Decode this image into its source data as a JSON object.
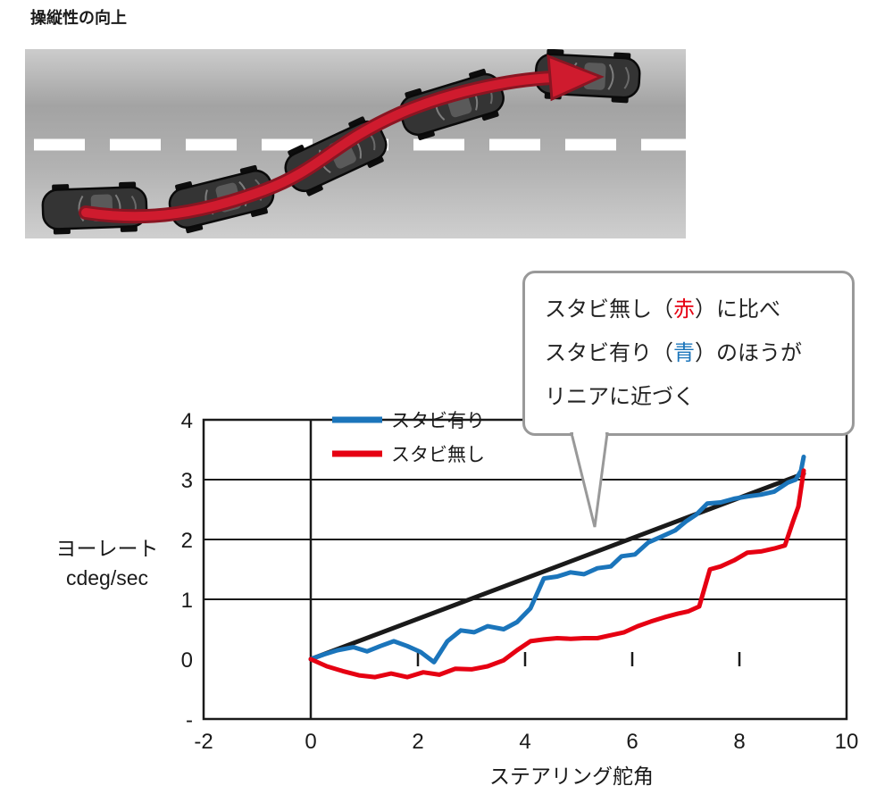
{
  "page": {
    "title": "操縦性の向上"
  },
  "callout": {
    "border_color": "#999999",
    "lines": [
      [
        {
          "text": "スタビ無し（"
        },
        {
          "text": "赤",
          "color": "#e60012"
        },
        {
          "text": "）に比べ"
        }
      ],
      [
        {
          "text": "スタビ有り（"
        },
        {
          "text": "青",
          "color": "#1b75bb"
        },
        {
          "text": "）のほうが"
        }
      ],
      [
        {
          "text": "リニアに近づく"
        }
      ]
    ]
  },
  "chart_data": {
    "type": "line",
    "title": "",
    "xlabel": "ステアリング舵角",
    "ylabel_lines": [
      "ヨーレート",
      "cdeg/sec"
    ],
    "xlim": [
      -2,
      10
    ],
    "ylim": [
      -1,
      4
    ],
    "x_ticks": [
      -2,
      0,
      2,
      4,
      6,
      8,
      10
    ],
    "x_tick_labels": [
      "-2",
      "0",
      "2",
      "4",
      "6",
      "8",
      "10"
    ],
    "y_ticks": [
      4,
      3,
      2,
      1,
      0,
      -1
    ],
    "y_tick_labels": [
      "4",
      "3",
      "2",
      "1",
      "0",
      "-"
    ],
    "gridlines_y": [
      1,
      2,
      3
    ],
    "axis_x_position": 0,
    "zero_line_ticks_x": [
      2,
      4,
      6,
      8
    ],
    "legend_position": "top-inside",
    "series": [
      {
        "name": "",
        "color": "#1a1a1a",
        "width": 5,
        "show_in_legend": false,
        "points": [
          [
            0,
            0
          ],
          [
            9.2,
            3.1
          ]
        ]
      },
      {
        "name": "スタビ有り",
        "color": "#1b75bb",
        "width": 5,
        "show_in_legend": true,
        "points": [
          [
            0,
            0
          ],
          [
            0.25,
            0.08
          ],
          [
            0.5,
            0.15
          ],
          [
            0.8,
            0.2
          ],
          [
            1.05,
            0.13
          ],
          [
            1.3,
            0.22
          ],
          [
            1.55,
            0.3
          ],
          [
            1.8,
            0.22
          ],
          [
            2.05,
            0.12
          ],
          [
            2.3,
            -0.05
          ],
          [
            2.55,
            0.3
          ],
          [
            2.8,
            0.48
          ],
          [
            3.05,
            0.45
          ],
          [
            3.3,
            0.55
          ],
          [
            3.6,
            0.5
          ],
          [
            3.85,
            0.62
          ],
          [
            4.1,
            0.85
          ],
          [
            4.35,
            1.35
          ],
          [
            4.6,
            1.38
          ],
          [
            4.85,
            1.45
          ],
          [
            5.1,
            1.42
          ],
          [
            5.35,
            1.52
          ],
          [
            5.6,
            1.55
          ],
          [
            5.8,
            1.72
          ],
          [
            6.05,
            1.75
          ],
          [
            6.3,
            1.95
          ],
          [
            6.55,
            2.05
          ],
          [
            6.8,
            2.15
          ],
          [
            7.0,
            2.3
          ],
          [
            7.2,
            2.42
          ],
          [
            7.4,
            2.6
          ],
          [
            7.65,
            2.62
          ],
          [
            7.9,
            2.68
          ],
          [
            8.15,
            2.72
          ],
          [
            8.4,
            2.75
          ],
          [
            8.65,
            2.8
          ],
          [
            8.9,
            2.95
          ],
          [
            9.05,
            3.0
          ],
          [
            9.15,
            3.15
          ],
          [
            9.2,
            3.38
          ]
        ]
      },
      {
        "name": "スタビ無し",
        "color": "#e60012",
        "width": 5,
        "show_in_legend": true,
        "points": [
          [
            0,
            0
          ],
          [
            0.3,
            -0.12
          ],
          [
            0.6,
            -0.2
          ],
          [
            0.9,
            -0.27
          ],
          [
            1.2,
            -0.3
          ],
          [
            1.5,
            -0.24
          ],
          [
            1.8,
            -0.3
          ],
          [
            2.1,
            -0.22
          ],
          [
            2.4,
            -0.26
          ],
          [
            2.7,
            -0.16
          ],
          [
            3.0,
            -0.17
          ],
          [
            3.3,
            -0.12
          ],
          [
            3.6,
            -0.02
          ],
          [
            3.85,
            0.15
          ],
          [
            4.1,
            0.3
          ],
          [
            4.35,
            0.33
          ],
          [
            4.6,
            0.35
          ],
          [
            4.85,
            0.34
          ],
          [
            5.1,
            0.35
          ],
          [
            5.35,
            0.35
          ],
          [
            5.6,
            0.4
          ],
          [
            5.85,
            0.45
          ],
          [
            6.1,
            0.55
          ],
          [
            6.35,
            0.63
          ],
          [
            6.6,
            0.7
          ],
          [
            6.85,
            0.76
          ],
          [
            7.05,
            0.8
          ],
          [
            7.25,
            0.88
          ],
          [
            7.45,
            1.5
          ],
          [
            7.65,
            1.55
          ],
          [
            7.9,
            1.65
          ],
          [
            8.15,
            1.78
          ],
          [
            8.4,
            1.8
          ],
          [
            8.65,
            1.85
          ],
          [
            8.85,
            1.9
          ],
          [
            9.0,
            2.3
          ],
          [
            9.1,
            2.55
          ],
          [
            9.2,
            3.15
          ]
        ]
      }
    ]
  }
}
